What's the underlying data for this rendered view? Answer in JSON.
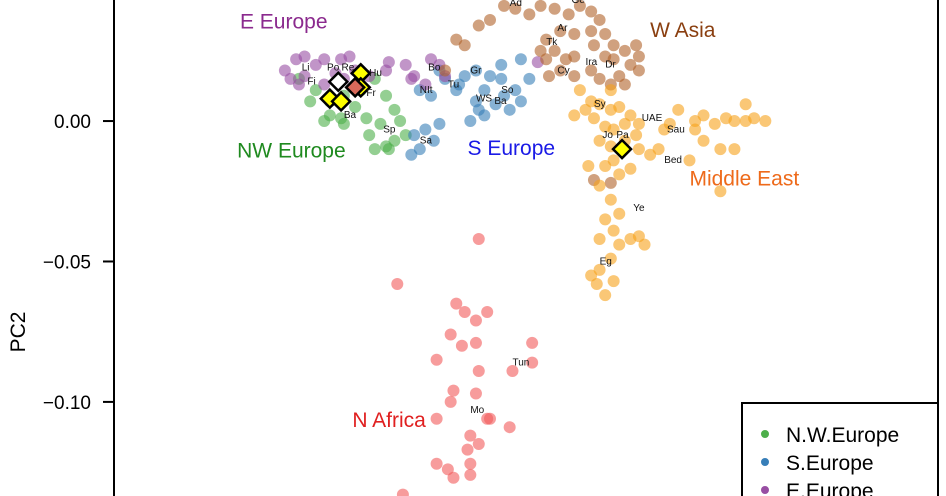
{
  "chart_data": {
    "type": "scatter",
    "title": "",
    "xlabel": "",
    "ylabel": "PC2",
    "xlim": [
      -0.1904,
      0.1463
    ],
    "ylim": [
      -0.1335,
      0.0431
    ],
    "yticks": [
      {
        "value": 0.0,
        "label": "0.00"
      },
      {
        "value": -0.05,
        "label": "−0.05"
      },
      {
        "value": -0.1,
        "label": "−0.10"
      }
    ],
    "grid": false,
    "legend_position": "bottom-right",
    "legend": [
      {
        "label": "N.W.Europe",
        "color": "#4daf4a"
      },
      {
        "label": "S.Europe",
        "color": "#377eb8"
      },
      {
        "label": "E.Europe",
        "color": "#984ea3"
      }
    ],
    "series": [
      {
        "group": "NW Europe",
        "color": "#4daf4a",
        "points": [
          [
            -0.084,
            0.015
          ],
          [
            -0.078,
            0.011
          ],
          [
            -0.073,
            0.007
          ],
          [
            -0.068,
            0.009
          ],
          [
            -0.062,
            0.011
          ],
          [
            -0.057,
            0.015
          ],
          [
            -0.053,
            0.009
          ],
          [
            -0.05,
            0.004
          ],
          [
            -0.055,
            -0.001
          ],
          [
            -0.059,
            -0.005
          ],
          [
            -0.053,
            -0.009
          ],
          [
            -0.05,
            -0.007
          ],
          [
            -0.073,
            0.002
          ],
          [
            -0.069,
            0.001
          ],
          [
            -0.075,
            0.0
          ],
          [
            -0.068,
            -0.001
          ],
          [
            -0.064,
            0.005
          ],
          [
            -0.06,
            0.001
          ],
          [
            -0.048,
            0.0
          ],
          [
            -0.052,
            -0.01
          ],
          [
            -0.057,
            -0.01
          ],
          [
            -0.046,
            -0.005
          ],
          [
            -0.08,
            0.007
          ]
        ]
      },
      {
        "group": "S Europe",
        "color": "#377eb8",
        "points": [
          [
            -0.043,
            -0.005
          ],
          [
            -0.039,
            -0.003
          ],
          [
            -0.036,
            -0.007
          ],
          [
            -0.041,
            -0.01
          ],
          [
            -0.044,
            -0.012
          ],
          [
            -0.034,
            -0.001
          ],
          [
            -0.037,
            0.009
          ],
          [
            -0.028,
            0.011
          ],
          [
            -0.025,
            0.016
          ],
          [
            -0.021,
            0.018
          ],
          [
            -0.016,
            0.016
          ],
          [
            -0.012,
            0.015
          ],
          [
            -0.018,
            0.011
          ],
          [
            -0.011,
            0.009
          ],
          [
            -0.007,
            0.011
          ],
          [
            -0.005,
            0.007
          ],
          [
            -0.009,
            0.004
          ],
          [
            -0.014,
            0.006
          ],
          [
            -0.02,
            0.004
          ],
          [
            -0.023,
            0.0
          ],
          [
            -0.027,
            0.013
          ],
          [
            -0.032,
            0.015
          ],
          [
            -0.041,
            0.011
          ],
          [
            -0.034,
            0.018
          ],
          [
            -0.005,
            0.022
          ],
          [
            -0.002,
            0.015
          ],
          [
            -0.012,
            0.02
          ],
          [
            -0.018,
            0.002
          ],
          [
            -0.021,
            0.007
          ]
        ]
      },
      {
        "group": "E Europe",
        "color": "#984ea3",
        "points": [
          [
            -0.089,
            0.018
          ],
          [
            -0.085,
            0.022
          ],
          [
            -0.082,
            0.016
          ],
          [
            -0.078,
            0.02
          ],
          [
            -0.075,
            0.022
          ],
          [
            -0.069,
            0.022
          ],
          [
            -0.066,
            0.023
          ],
          [
            -0.064,
            0.018
          ],
          [
            -0.068,
            0.015
          ],
          [
            -0.075,
            0.013
          ],
          [
            -0.084,
            0.013
          ],
          [
            -0.087,
            0.015
          ],
          [
            -0.059,
            0.016
          ],
          [
            -0.053,
            0.018
          ],
          [
            -0.046,
            0.02
          ],
          [
            -0.043,
            0.016
          ],
          [
            -0.037,
            0.022
          ],
          [
            -0.034,
            0.02
          ],
          [
            -0.032,
            0.016
          ],
          [
            -0.039,
            0.013
          ],
          [
            -0.044,
            0.015
          ],
          [
            -0.052,
            0.021
          ],
          [
            -0.082,
            0.023
          ],
          [
            -0.071,
            0.017
          ],
          [
            0.001,
            0.021
          ]
        ]
      },
      {
        "group": "W Asia",
        "color": "#b0622a",
        "points": [
          [
            -0.032,
            0.018
          ],
          [
            -0.028,
            0.029
          ],
          [
            -0.025,
            0.027
          ],
          [
            -0.02,
            0.034
          ],
          [
            -0.016,
            0.036
          ],
          [
            -0.011,
            0.041
          ],
          [
            -0.007,
            0.04
          ],
          [
            -0.002,
            0.038
          ],
          [
            0.002,
            0.041
          ],
          [
            0.007,
            0.04
          ],
          [
            0.012,
            0.038
          ],
          [
            0.016,
            0.041
          ],
          [
            0.02,
            0.039
          ],
          [
            0.023,
            0.036
          ],
          [
            0.02,
            0.032
          ],
          [
            0.014,
            0.031
          ],
          [
            0.009,
            0.032
          ],
          [
            0.004,
            0.029
          ],
          [
            0.002,
            0.025
          ],
          [
            0.007,
            0.025
          ],
          [
            0.011,
            0.022
          ],
          [
            0.014,
            0.023
          ],
          [
            0.021,
            0.027
          ],
          [
            0.025,
            0.023
          ],
          [
            0.028,
            0.027
          ],
          [
            0.032,
            0.025
          ],
          [
            0.036,
            0.027
          ],
          [
            0.037,
            0.023
          ],
          [
            0.034,
            0.02
          ],
          [
            0.03,
            0.016
          ],
          [
            0.027,
            0.013
          ],
          [
            0.023,
            0.015
          ],
          [
            0.02,
            0.018
          ],
          [
            0.014,
            0.016
          ],
          [
            0.009,
            0.018
          ],
          [
            0.005,
            0.016
          ],
          [
            0.004,
            0.022
          ],
          [
            0.025,
            0.031
          ],
          [
            0.028,
            0.022
          ],
          [
            0.032,
            0.013
          ],
          [
            0.037,
            0.018
          ],
          [
            0.021,
            -0.021
          ],
          [
            0.027,
            -0.022
          ]
        ]
      },
      {
        "group": "Middle East",
        "color": "#f7a21b",
        "points": [
          [
            0.014,
            0.002
          ],
          [
            0.018,
            0.004
          ],
          [
            0.021,
            0.001
          ],
          [
            0.023,
            0.006
          ],
          [
            0.027,
            0.004
          ],
          [
            0.03,
            0.005
          ],
          [
            0.034,
            0.002
          ],
          [
            0.032,
            -0.001
          ],
          [
            0.028,
            -0.003
          ],
          [
            0.025,
            -0.002
          ],
          [
            0.023,
            -0.007
          ],
          [
            0.027,
            -0.009
          ],
          [
            0.032,
            -0.007
          ],
          [
            0.036,
            -0.005
          ],
          [
            0.037,
            -0.001
          ],
          [
            0.028,
            -0.014
          ],
          [
            0.025,
            -0.016
          ],
          [
            0.03,
            -0.019
          ],
          [
            0.034,
            -0.017
          ],
          [
            0.023,
            -0.023
          ],
          [
            0.019,
            -0.016
          ],
          [
            0.037,
            -0.01
          ],
          [
            0.041,
            -0.012
          ],
          [
            0.044,
            -0.01
          ],
          [
            0.046,
            -0.003
          ],
          [
            0.048,
            -0.001
          ],
          [
            0.057,
            0.0
          ],
          [
            0.06,
            0.002
          ],
          [
            0.064,
            -0.001
          ],
          [
            0.068,
            0.001
          ],
          [
            0.071,
            0.0
          ],
          [
            0.075,
            0.0
          ],
          [
            0.078,
            0.001
          ],
          [
            0.082,
            0.0
          ],
          [
            0.06,
            -0.007
          ],
          [
            0.066,
            -0.01
          ],
          [
            0.071,
            -0.01
          ],
          [
            0.057,
            -0.003
          ],
          [
            0.055,
            -0.014
          ],
          [
            0.051,
            0.004
          ],
          [
            0.066,
            -0.025
          ],
          [
            0.075,
            0.006
          ],
          [
            0.027,
            -0.028
          ],
          [
            0.03,
            -0.033
          ],
          [
            0.025,
            -0.035
          ],
          [
            0.028,
            -0.039
          ],
          [
            0.023,
            -0.042
          ],
          [
            0.03,
            -0.044
          ],
          [
            0.034,
            -0.042
          ],
          [
            0.027,
            -0.049
          ],
          [
            0.023,
            -0.053
          ],
          [
            0.028,
            -0.057
          ],
          [
            0.022,
            -0.058
          ],
          [
            0.025,
            -0.062
          ],
          [
            0.02,
            -0.055
          ],
          [
            0.037,
            -0.041
          ],
          [
            0.039,
            -0.044
          ],
          [
            0.02,
            0.007
          ],
          [
            0.027,
            0.011
          ],
          [
            0.016,
            0.011
          ]
        ]
      },
      {
        "group": "N Africa",
        "color": "#f25a5a",
        "points": [
          [
            -0.02,
            -0.042
          ],
          [
            -0.049,
            -0.058
          ],
          [
            -0.028,
            -0.065
          ],
          [
            -0.025,
            -0.068
          ],
          [
            -0.021,
            -0.071
          ],
          [
            -0.017,
            -0.068
          ],
          [
            -0.03,
            -0.076
          ],
          [
            -0.026,
            -0.08
          ],
          [
            -0.021,
            -0.079
          ],
          [
            -0.001,
            -0.079
          ],
          [
            -0.035,
            -0.085
          ],
          [
            -0.02,
            -0.089
          ],
          [
            -0.008,
            -0.089
          ],
          [
            -0.001,
            -0.086
          ],
          [
            -0.029,
            -0.096
          ],
          [
            -0.021,
            -0.097
          ],
          [
            -0.03,
            -0.1
          ],
          [
            -0.035,
            -0.106
          ],
          [
            -0.017,
            -0.106
          ],
          [
            -0.016,
            -0.106
          ],
          [
            -0.009,
            -0.109
          ],
          [
            -0.023,
            -0.112
          ],
          [
            -0.02,
            -0.115
          ],
          [
            -0.024,
            -0.117
          ],
          [
            -0.035,
            -0.122
          ],
          [
            -0.031,
            -0.124
          ],
          [
            -0.029,
            -0.127
          ],
          [
            -0.023,
            -0.122
          ],
          [
            -0.023,
            -0.126
          ],
          [
            -0.047,
            -0.133
          ]
        ]
      }
    ],
    "highlighted_samples": [
      {
        "x": -0.073,
        "y": 0.008,
        "color": "#ffff00"
      },
      {
        "x": -0.069,
        "y": 0.007,
        "color": "#ffff00"
      },
      {
        "x": -0.062,
        "y": 0.017,
        "color": "#ffff00"
      },
      {
        "x": -0.062,
        "y": 0.012,
        "color": "#ffff00"
      },
      {
        "x": -0.07,
        "y": 0.014,
        "color": "#ffffff"
      },
      {
        "x": -0.064,
        "y": 0.012,
        "color": "#d9695a"
      },
      {
        "x": 0.031,
        "y": -0.01,
        "color": "#ffff00"
      }
    ],
    "population_labels": [
      {
        "text": "Li",
        "x": -0.083,
        "y": 0.018
      },
      {
        "text": "Fi",
        "x": -0.081,
        "y": 0.013
      },
      {
        "text": "Po",
        "x": -0.074,
        "y": 0.018
      },
      {
        "text": "Re",
        "x": -0.071,
        "y": 0.018
      },
      {
        "text": "Hu",
        "x": -0.059,
        "y": 0.016
      },
      {
        "text": "Fr",
        "x": -0.06,
        "y": 0.009
      },
      {
        "text": "Ba",
        "x": -0.068,
        "y": 0.001
      },
      {
        "text": "Sp",
        "x": -0.054,
        "y": -0.004
      },
      {
        "text": "Sa",
        "x": -0.041,
        "y": -0.008
      },
      {
        "text": "Bo",
        "x": -0.038,
        "y": 0.018
      },
      {
        "text": "NIt",
        "x": -0.041,
        "y": 0.01
      },
      {
        "text": "Tu",
        "x": -0.031,
        "y": 0.012
      },
      {
        "text": "Gr",
        "x": -0.023,
        "y": 0.017
      },
      {
        "text": "WS",
        "x": -0.021,
        "y": 0.007
      },
      {
        "text": "Ba",
        "x": -0.018,
        "y": 0.006
      },
      {
        "text": "So",
        "x": -0.012,
        "y": 0.01
      },
      {
        "text": "Ad",
        "x": -0.009,
        "y": 0.041
      },
      {
        "text": "Ge",
        "x": 0.013,
        "y": 0.042
      },
      {
        "text": "Ar",
        "x": 0.008,
        "y": 0.032
      },
      {
        "text": "Tk",
        "x": 0.004,
        "y": 0.027
      },
      {
        "text": "Cy",
        "x": 0.008,
        "y": 0.017
      },
      {
        "text": "Ira",
        "x": 0.018,
        "y": 0.02
      },
      {
        "text": "Dr",
        "x": 0.025,
        "y": 0.019
      },
      {
        "text": "Sy",
        "x": 0.021,
        "y": 0.005
      },
      {
        "text": "UAE",
        "x": 0.038,
        "y": 0.0
      },
      {
        "text": "Sau",
        "x": 0.047,
        "y": -0.004
      },
      {
        "text": "Jo",
        "x": 0.024,
        "y": -0.006
      },
      {
        "text": "Pa",
        "x": 0.029,
        "y": -0.006
      },
      {
        "text": "Bed",
        "x": 0.046,
        "y": -0.015
      },
      {
        "text": "Ye",
        "x": 0.035,
        "y": -0.032
      },
      {
        "text": "Eg",
        "x": 0.023,
        "y": -0.051
      },
      {
        "text": "Tun",
        "x": -0.008,
        "y": -0.087
      },
      {
        "text": "Mo",
        "x": -0.023,
        "y": -0.104
      }
    ],
    "group_labels": [
      {
        "text": "E Europe",
        "x": -0.105,
        "y": 0.033,
        "color": "#8b2a8e",
        "size": 21
      },
      {
        "text": "W Asia",
        "x": 0.041,
        "y": 0.03,
        "color": "#8a3f10",
        "size": 21
      },
      {
        "text": "NW Europe",
        "x": -0.106,
        "y": -0.013,
        "color": "#1f8a1f",
        "size": 21
      },
      {
        "text": "S Europe",
        "x": -0.024,
        "y": -0.012,
        "color": "#1a1ae6",
        "size": 21
      },
      {
        "text": "Middle East",
        "x": 0.055,
        "y": -0.023,
        "color": "#ee6a1a",
        "size": 21
      },
      {
        "text": "N Africa",
        "x": -0.065,
        "y": -0.109,
        "color": "#e02020",
        "size": 14
      }
    ]
  }
}
